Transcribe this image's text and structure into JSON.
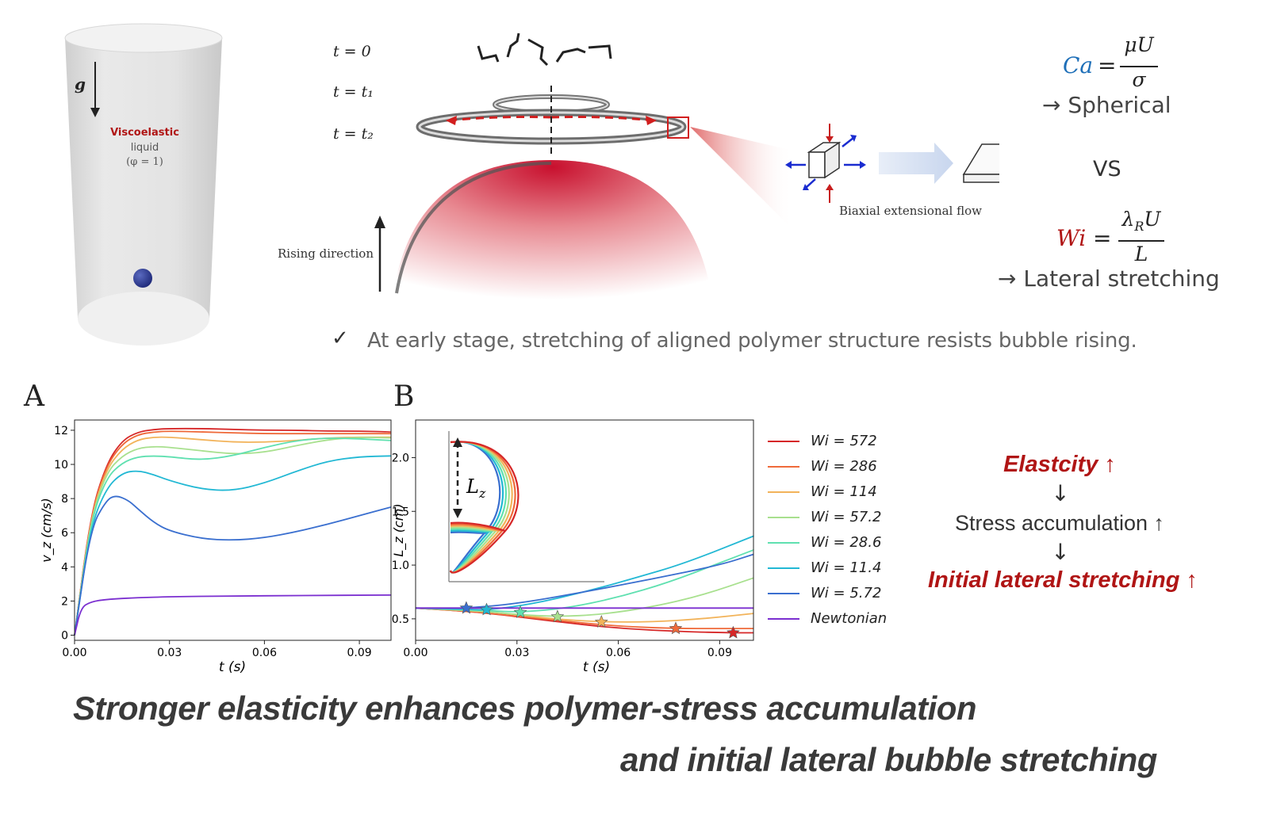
{
  "cylinder": {
    "gravity_label": "g",
    "liquid_line1": "Viscoelastic",
    "liquid_line2": "liquid",
    "liquid_line3": "(φ = 1)"
  },
  "schematic": {
    "time_labels": [
      "t = 0",
      "t = t₁",
      "t = t₂"
    ],
    "rising_label": "Rising direction",
    "flow_label": "Biaxial extensional flow",
    "ca_lhs": "Ca",
    "ca_num": "μU",
    "ca_den": "σ",
    "ca_result": "→ Spherical",
    "vs_label": "VS",
    "wi_lhs": "Wi",
    "wi_num": "λ",
    "wi_num_sub": "R",
    "wi_num_tail": "U",
    "wi_den": "L",
    "wi_result": "→ Lateral stretching",
    "check_mark": "✓",
    "note": "At early stage, stretching of aligned polymer structure resists bubble rising."
  },
  "panels": {
    "a": "A",
    "b": "B"
  },
  "colors": {
    "Wi572": "#d62728",
    "Wi286": "#ef6a3a",
    "Wi114": "#f2b35a",
    "Wi57.2": "#a8e08e",
    "Wi28.6": "#5fe0b0",
    "Wi11.4": "#22b8d4",
    "Wi5.72": "#3a6fcf",
    "Newtonian": "#7b2fd0",
    "accent_red": "#b01515"
  },
  "legend": [
    {
      "key": "Wi572",
      "label": "Wi = 572"
    },
    {
      "key": "Wi286",
      "label": "Wi = 286"
    },
    {
      "key": "Wi114",
      "label": "Wi = 114"
    },
    {
      "key": "Wi57.2",
      "label": "Wi = 57.2"
    },
    {
      "key": "Wi28.6",
      "label": "Wi = 28.6"
    },
    {
      "key": "Wi11.4",
      "label": "Wi = 11.4"
    },
    {
      "key": "Wi5.72",
      "label": "Wi = 5.72"
    },
    {
      "key": "Newtonian",
      "label": "Newtonian"
    }
  ],
  "chart_data": [
    {
      "type": "line",
      "panel": "A",
      "xlabel": "t (s)",
      "ylabel": "v_z (cm/s)",
      "xlim": [
        0,
        0.1
      ],
      "ylim": [
        -0.3,
        12.6
      ],
      "xticks": [
        "0.00",
        "0.03",
        "0.06",
        "0.09"
      ],
      "xtick_values": [
        0,
        0.03,
        0.06,
        0.09
      ],
      "yticks": [
        "0",
        "2",
        "4",
        "6",
        "8",
        "10",
        "12"
      ],
      "ytick_values": [
        0,
        2,
        4,
        6,
        8,
        10,
        12
      ],
      "series": [
        {
          "key": "Wi572",
          "x": [
            0,
            0.005,
            0.01,
            0.015,
            0.02,
            0.025,
            0.03,
            0.04,
            0.05,
            0.06,
            0.07,
            0.08,
            0.09,
            0.1
          ],
          "y": [
            0,
            7.0,
            10.0,
            11.4,
            11.9,
            12.05,
            12.1,
            12.1,
            12.05,
            12.0,
            12.0,
            11.95,
            11.95,
            11.9
          ]
        },
        {
          "key": "Wi286",
          "x": [
            0,
            0.005,
            0.01,
            0.015,
            0.02,
            0.025,
            0.03,
            0.04,
            0.05,
            0.06,
            0.07,
            0.08,
            0.09,
            0.1
          ],
          "y": [
            0,
            6.9,
            9.9,
            11.2,
            11.75,
            11.9,
            11.95,
            11.9,
            11.85,
            11.8,
            11.8,
            11.8,
            11.8,
            11.8
          ]
        },
        {
          "key": "Wi114",
          "x": [
            0,
            0.005,
            0.01,
            0.015,
            0.02,
            0.025,
            0.03,
            0.04,
            0.05,
            0.06,
            0.07,
            0.08,
            0.09,
            0.1
          ],
          "y": [
            0,
            6.8,
            9.7,
            10.9,
            11.45,
            11.6,
            11.6,
            11.45,
            11.3,
            11.3,
            11.4,
            11.55,
            11.6,
            11.6
          ]
        },
        {
          "key": "Wi57.2",
          "x": [
            0,
            0.005,
            0.01,
            0.015,
            0.02,
            0.025,
            0.03,
            0.04,
            0.05,
            0.06,
            0.07,
            0.08,
            0.09,
            0.1
          ],
          "y": [
            0,
            6.7,
            9.5,
            10.5,
            10.95,
            11.05,
            11.0,
            10.8,
            10.6,
            10.7,
            11.1,
            11.45,
            11.6,
            11.55
          ]
        },
        {
          "key": "Wi28.6",
          "x": [
            0,
            0.005,
            0.01,
            0.015,
            0.02,
            0.025,
            0.03,
            0.04,
            0.05,
            0.06,
            0.07,
            0.08,
            0.09,
            0.1
          ],
          "y": [
            0,
            6.6,
            9.2,
            10.1,
            10.45,
            10.5,
            10.45,
            10.25,
            10.5,
            11.0,
            11.4,
            11.55,
            11.5,
            11.4
          ]
        },
        {
          "key": "Wi11.4",
          "x": [
            0,
            0.005,
            0.01,
            0.015,
            0.02,
            0.025,
            0.03,
            0.04,
            0.05,
            0.06,
            0.07,
            0.08,
            0.09,
            0.1
          ],
          "y": [
            0,
            6.3,
            8.6,
            9.5,
            9.65,
            9.4,
            9.05,
            8.55,
            8.45,
            8.9,
            9.6,
            10.2,
            10.45,
            10.5
          ]
        },
        {
          "key": "Wi5.72",
          "x": [
            0,
            0.005,
            0.01,
            0.013,
            0.017,
            0.02,
            0.025,
            0.03,
            0.04,
            0.05,
            0.06,
            0.07,
            0.08,
            0.09,
            0.1
          ],
          "y": [
            0,
            6.2,
            7.9,
            8.2,
            7.9,
            7.4,
            6.6,
            6.1,
            5.65,
            5.55,
            5.7,
            6.05,
            6.5,
            7.0,
            7.5
          ]
        },
        {
          "key": "Newtonian",
          "x": [
            0,
            0.002,
            0.005,
            0.01,
            0.02,
            0.03,
            0.05,
            0.07,
            0.1
          ],
          "y": [
            0,
            1.6,
            1.95,
            2.1,
            2.2,
            2.25,
            2.3,
            2.32,
            2.35
          ]
        }
      ]
    },
    {
      "type": "line",
      "panel": "B",
      "xlabel": "t (s)",
      "ylabel": "L_z (cm)",
      "xlim": [
        0,
        0.1
      ],
      "ylim": [
        0.3,
        2.35
      ],
      "xticks": [
        "0.00",
        "0.03",
        "0.06",
        "0.09"
      ],
      "xtick_values": [
        0,
        0.03,
        0.06,
        0.09
      ],
      "yticks": [
        "0.5",
        "1.0",
        "1.5",
        "2.0"
      ],
      "ytick_values": [
        0.5,
        1.0,
        1.5,
        2.0
      ],
      "inset_label": "L",
      "inset_label_sub": "z",
      "series": [
        {
          "key": "Wi572",
          "x": [
            0,
            0.02,
            0.04,
            0.06,
            0.08,
            0.093,
            0.1
          ],
          "y": [
            0.6,
            0.56,
            0.48,
            0.41,
            0.38,
            0.37,
            0.37
          ]
        },
        {
          "key": "Wi286",
          "x": [
            0,
            0.02,
            0.04,
            0.06,
            0.077,
            0.09,
            0.1
          ],
          "y": [
            0.6,
            0.56,
            0.49,
            0.43,
            0.41,
            0.41,
            0.41
          ]
        },
        {
          "key": "Wi114",
          "x": [
            0,
            0.02,
            0.03,
            0.04,
            0.055,
            0.07,
            0.085,
            0.1
          ],
          "y": [
            0.6,
            0.57,
            0.54,
            0.5,
            0.47,
            0.47,
            0.5,
            0.55
          ]
        },
        {
          "key": "Wi57.2",
          "x": [
            0,
            0.02,
            0.03,
            0.042,
            0.055,
            0.07,
            0.085,
            0.1
          ],
          "y": [
            0.6,
            0.57,
            0.54,
            0.52,
            0.54,
            0.61,
            0.72,
            0.88
          ]
        },
        {
          "key": "Wi28.6",
          "x": [
            0,
            0.02,
            0.031,
            0.045,
            0.06,
            0.075,
            0.09,
            0.1
          ],
          "y": [
            0.6,
            0.58,
            0.56,
            0.6,
            0.7,
            0.84,
            1.02,
            1.14
          ]
        },
        {
          "key": "Wi11.4",
          "x": [
            0,
            0.015,
            0.021,
            0.035,
            0.05,
            0.065,
            0.08,
            0.1
          ],
          "y": [
            0.6,
            0.59,
            0.58,
            0.64,
            0.75,
            0.88,
            1.02,
            1.27
          ]
        },
        {
          "key": "Wi5.72",
          "x": [
            0,
            0.01,
            0.015,
            0.03,
            0.05,
            0.07,
            0.09,
            0.1
          ],
          "y": [
            0.6,
            0.6,
            0.6,
            0.64,
            0.75,
            0.87,
            1.0,
            1.1
          ]
        },
        {
          "key": "Newtonian",
          "x": [
            0,
            0.1
          ],
          "y": [
            0.6,
            0.6
          ]
        }
      ],
      "stars": [
        {
          "key": "Wi5.72",
          "x": 0.015,
          "y": 0.6
        },
        {
          "key": "Wi11.4",
          "x": 0.021,
          "y": 0.585
        },
        {
          "key": "Wi28.6",
          "x": 0.031,
          "y": 0.56
        },
        {
          "key": "Wi57.2",
          "x": 0.042,
          "y": 0.52
        },
        {
          "key": "Wi114",
          "x": 0.055,
          "y": 0.47
        },
        {
          "key": "Wi286",
          "x": 0.077,
          "y": 0.41
        },
        {
          "key": "Wi572",
          "x": 0.094,
          "y": 0.37
        }
      ]
    }
  ],
  "summary": {
    "line1": "Elastcity ↑",
    "arrow1": "↓",
    "line2": "Stress accumulation ↑",
    "arrow2": "↓",
    "line3": "Initial lateral stretching ↑"
  },
  "headline": {
    "line1": "Stronger elasticity enhances polymer-stress accumulation",
    "line2": "and initial lateral bubble stretching"
  }
}
